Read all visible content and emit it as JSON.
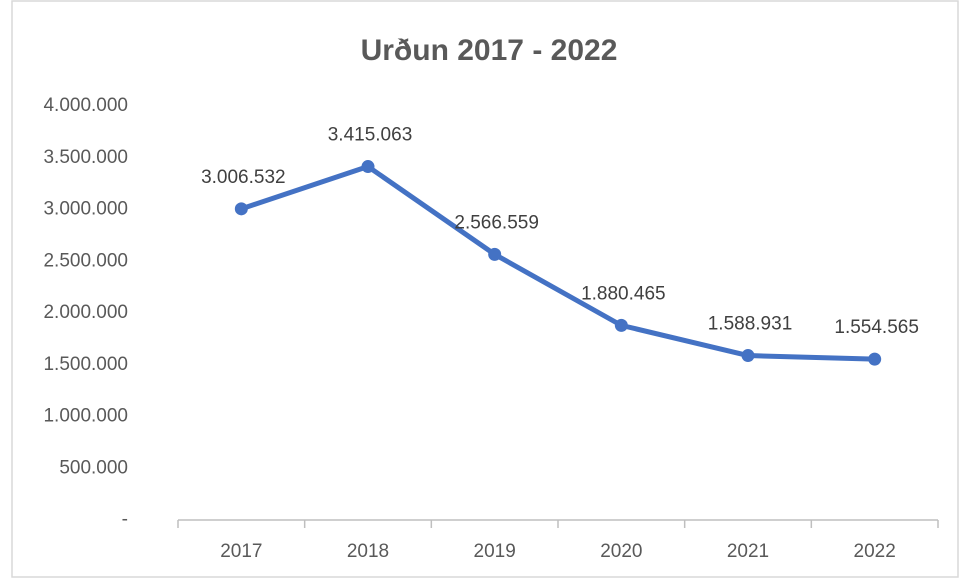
{
  "chart_data": {
    "type": "line",
    "title": "Urðun 2017 - 2022",
    "categories": [
      "2017",
      "2018",
      "2019",
      "2020",
      "2021",
      "2022"
    ],
    "series": [
      {
        "name": "Urðun",
        "color": "#4472c4",
        "values": [
          3006532,
          3415063,
          2566559,
          1880465,
          1588931,
          1554565
        ],
        "value_labels": [
          "3.006.532",
          "3.415.063",
          "2.566.559",
          "1.880.465",
          "1.588.931",
          "1.554.565"
        ]
      }
    ],
    "ylim": [
      0,
      4000000
    ],
    "yticks": [
      {
        "value": 0,
        "label": "-"
      },
      {
        "value": 500000,
        "label": "500.000"
      },
      {
        "value": 1000000,
        "label": "1.000.000"
      },
      {
        "value": 1500000,
        "label": "1.500.000"
      },
      {
        "value": 2000000,
        "label": "2.000.000"
      },
      {
        "value": 2500000,
        "label": "2.500.000"
      },
      {
        "value": 3000000,
        "label": "3.000.000"
      },
      {
        "value": 3500000,
        "label": "3.500.000"
      },
      {
        "value": 4000000,
        "label": "4.000.000"
      }
    ],
    "grid": false
  }
}
